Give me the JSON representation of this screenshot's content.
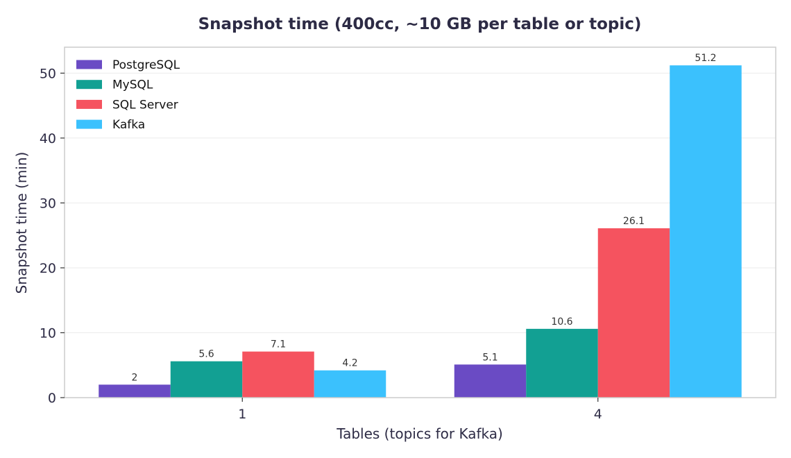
{
  "chart_data": {
    "type": "bar",
    "title": "Snapshot time (400cc, ~10 GB per table or topic)",
    "xlabel": "Tables (topics for Kafka)",
    "ylabel": "Snapshot time (min)",
    "categories": [
      "1",
      "4"
    ],
    "series": [
      {
        "name": "PostgreSQL",
        "color": "#6a4bc4",
        "values": [
          2,
          5.1
        ],
        "labels": [
          "2",
          "5.1"
        ]
      },
      {
        "name": "MySQL",
        "color": "#12a093",
        "values": [
          5.6,
          10.6
        ],
        "labels": [
          "5.6",
          "10.6"
        ]
      },
      {
        "name": "SQL Server",
        "color": "#f5535f",
        "values": [
          7.1,
          26.1
        ],
        "labels": [
          "7.1",
          "26.1"
        ]
      },
      {
        "name": "Kafka",
        "color": "#3bc1fd",
        "values": [
          4.2,
          51.2
        ],
        "labels": [
          "4.2",
          "51.2"
        ]
      }
    ],
    "yticks": [
      "0",
      "10",
      "20",
      "30",
      "40",
      "50"
    ],
    "ylim": [
      0,
      54
    ],
    "grid": "horizontal",
    "legend": "top-left"
  }
}
